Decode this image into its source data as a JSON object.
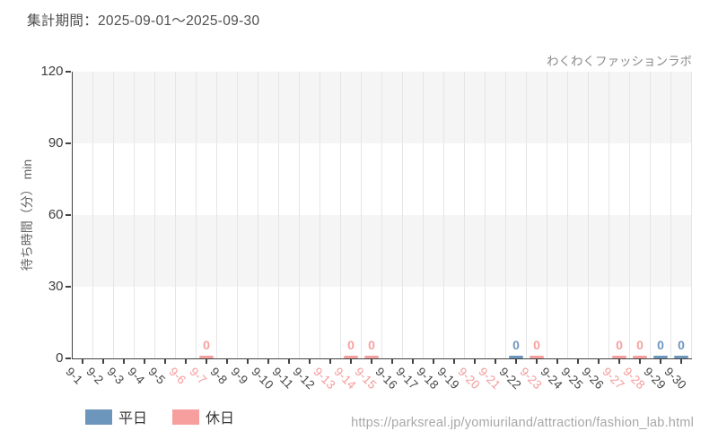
{
  "header": {
    "period": "集計期間：2025-09-01〜2025-09-30"
  },
  "footer": {
    "url": "https://parksreal.jp/yomiuriland/attraction/fashion_lab.html"
  },
  "legend": {
    "items": [
      {
        "label": "平日",
        "color": "#6d96bd"
      },
      {
        "label": "休日",
        "color": "#f79f9f"
      }
    ]
  },
  "colors": {
    "weekday_series": "#6d96bd",
    "holiday_series": "#f79f9f",
    "band_gray": "#f5f5f5",
    "band_white": "#ffffff",
    "gridline": "#e5e5e5",
    "axis": "#424242",
    "weekday_label": "#474747",
    "holiday_label": "#f59b9b"
  },
  "chart_data": {
    "type": "bar",
    "title": "わくわくファッションラボ",
    "ylabel": "待ち時間（分） min",
    "xlabel": "",
    "ylim": [
      0,
      120
    ],
    "yticks": [
      0,
      30,
      60,
      90,
      120
    ],
    "grid": true,
    "legend_position": "bottom-left",
    "categories": [
      "9-1",
      "9-2",
      "9-3",
      "9-4",
      "9-5",
      "9-6",
      "9-7",
      "9-8",
      "9-9",
      "9-10",
      "9-11",
      "9-12",
      "9-13",
      "9-14",
      "9-15",
      "9-16",
      "9-17",
      "9-18",
      "9-19",
      "9-20",
      "9-21",
      "9-22",
      "9-23",
      "9-24",
      "9-25",
      "9-26",
      "9-27",
      "9-28",
      "9-29",
      "9-30"
    ],
    "holiday_dates": [
      "9-6",
      "9-7",
      "9-13",
      "9-14",
      "9-15",
      "9-20",
      "9-21",
      "9-23",
      "9-27",
      "9-28"
    ],
    "series": [
      {
        "name": "平日",
        "color": "#6d96bd",
        "points": [
          {
            "x": "9-22",
            "y": 0
          },
          {
            "x": "9-29",
            "y": 0
          },
          {
            "x": "9-30",
            "y": 0
          }
        ]
      },
      {
        "name": "休日",
        "color": "#f79f9f",
        "points": [
          {
            "x": "9-7",
            "y": 0
          },
          {
            "x": "9-14",
            "y": 0
          },
          {
            "x": "9-15",
            "y": 0
          },
          {
            "x": "9-23",
            "y": 0
          },
          {
            "x": "9-27",
            "y": 0
          },
          {
            "x": "9-28",
            "y": 0
          }
        ]
      }
    ]
  }
}
